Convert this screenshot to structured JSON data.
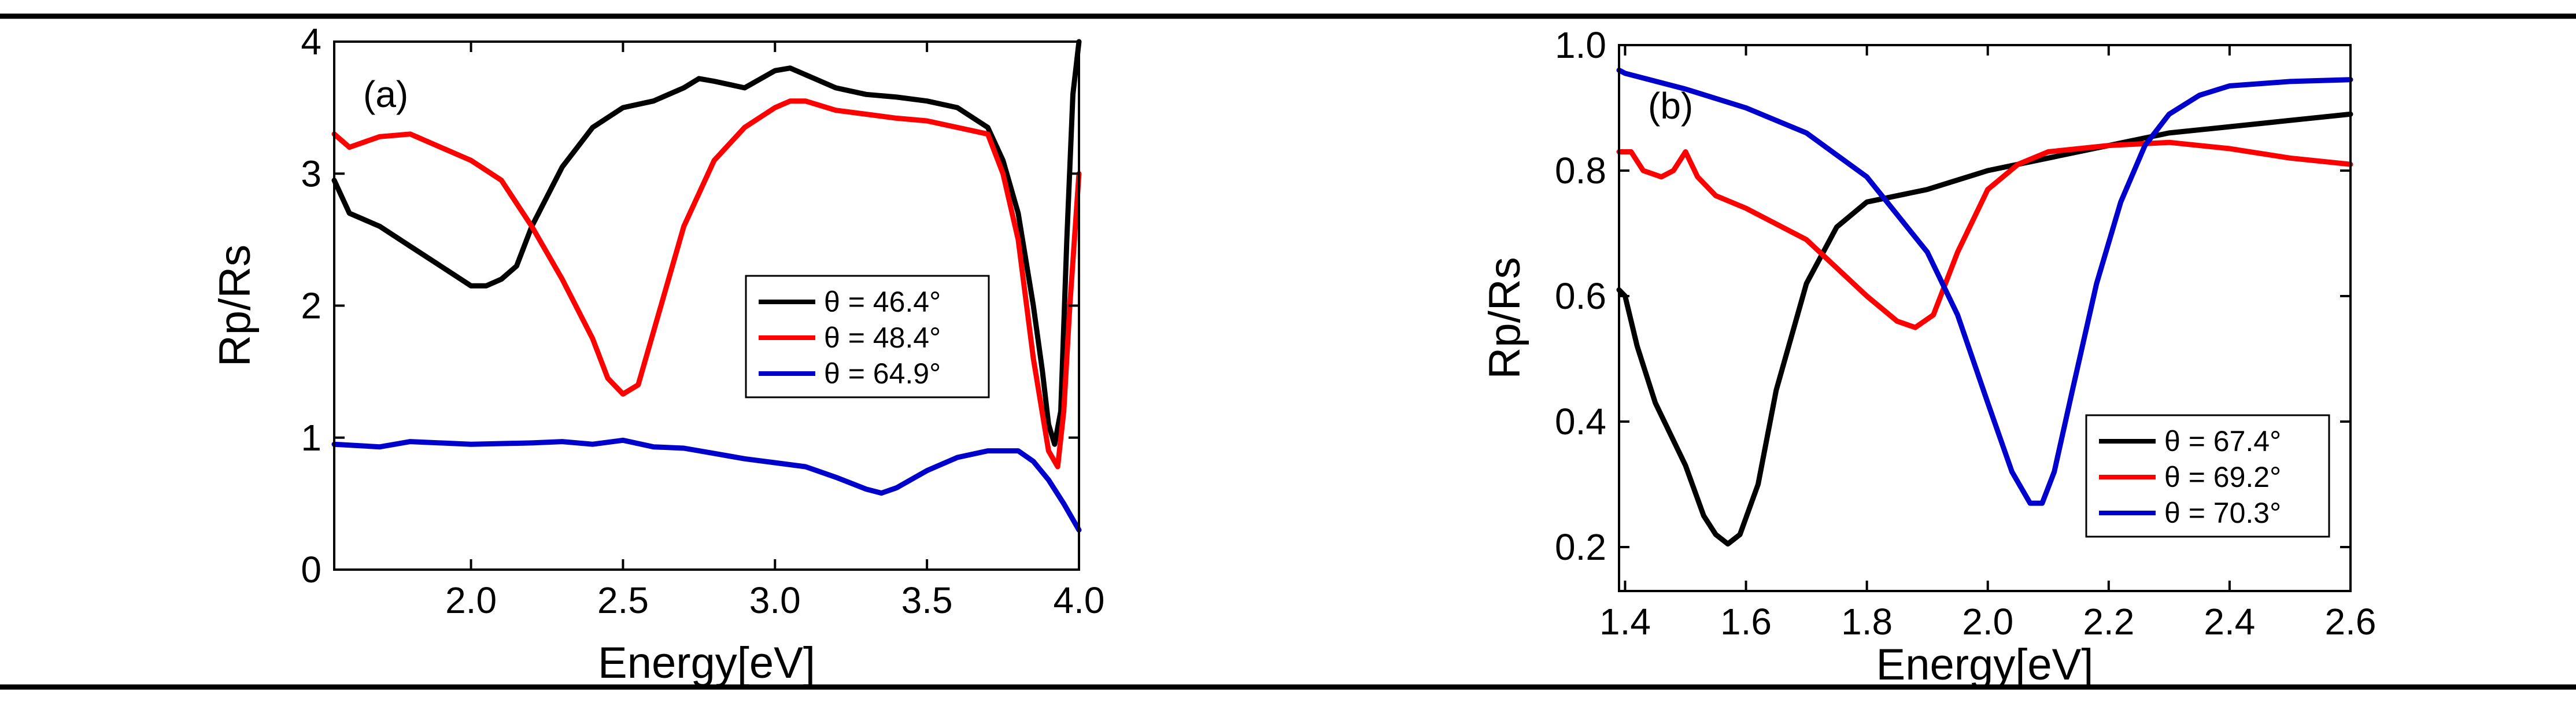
{
  "chart_data": [
    {
      "panel": "(a)",
      "type": "line",
      "title": "",
      "xlabel": "Energy[eV]",
      "ylabel": "Rp/Rs",
      "xlim": [
        1.55,
        4.0
      ],
      "ylim": [
        0,
        4
      ],
      "xticks": [
        "2.0",
        "2.5",
        "3.0",
        "3.5",
        "4.0"
      ],
      "yticks": [
        "0",
        "1",
        "2",
        "3",
        "4"
      ],
      "legend_position": "right-middle",
      "series": [
        {
          "name": "θ = 46.4°",
          "color": "#000000",
          "x": [
            1.55,
            1.6,
            1.7,
            1.8,
            1.9,
            2.0,
            2.05,
            2.1,
            2.15,
            2.2,
            2.3,
            2.4,
            2.5,
            2.6,
            2.7,
            2.75,
            2.8,
            2.9,
            3.0,
            3.05,
            3.1,
            3.2,
            3.3,
            3.4,
            3.5,
            3.6,
            3.7,
            3.75,
            3.8,
            3.85,
            3.88,
            3.9,
            3.92,
            3.94,
            3.96,
            3.98,
            4.0
          ],
          "y": [
            2.95,
            2.7,
            2.6,
            2.45,
            2.3,
            2.15,
            2.15,
            2.2,
            2.3,
            2.6,
            3.05,
            3.35,
            3.5,
            3.55,
            3.65,
            3.72,
            3.7,
            3.65,
            3.78,
            3.8,
            3.75,
            3.65,
            3.6,
            3.58,
            3.55,
            3.5,
            3.35,
            3.1,
            2.7,
            2.0,
            1.5,
            1.1,
            0.95,
            1.2,
            2.5,
            3.6,
            4.0
          ]
        },
        {
          "name": "θ = 48.4°",
          "color": "#ff0000",
          "x": [
            1.55,
            1.6,
            1.7,
            1.8,
            1.9,
            2.0,
            2.1,
            2.2,
            2.3,
            2.4,
            2.45,
            2.5,
            2.55,
            2.6,
            2.7,
            2.8,
            2.9,
            3.0,
            3.05,
            3.1,
            3.2,
            3.3,
            3.4,
            3.5,
            3.6,
            3.7,
            3.75,
            3.8,
            3.85,
            3.9,
            3.93,
            3.95,
            3.97,
            4.0
          ],
          "y": [
            3.3,
            3.2,
            3.28,
            3.3,
            3.2,
            3.1,
            2.95,
            2.6,
            2.2,
            1.75,
            1.45,
            1.33,
            1.4,
            1.8,
            2.6,
            3.1,
            3.35,
            3.5,
            3.55,
            3.55,
            3.48,
            3.45,
            3.42,
            3.4,
            3.35,
            3.3,
            3.0,
            2.5,
            1.6,
            0.9,
            0.78,
            1.2,
            2.0,
            3.0
          ]
        },
        {
          "name": "θ = 64.9°",
          "color": "#0000cc",
          "x": [
            1.55,
            1.7,
            1.8,
            2.0,
            2.2,
            2.3,
            2.4,
            2.5,
            2.6,
            2.7,
            2.8,
            2.9,
            3.0,
            3.1,
            3.2,
            3.3,
            3.35,
            3.4,
            3.5,
            3.6,
            3.7,
            3.8,
            3.85,
            3.9,
            3.95,
            4.0
          ],
          "y": [
            0.95,
            0.93,
            0.97,
            0.95,
            0.96,
            0.97,
            0.95,
            0.98,
            0.93,
            0.92,
            0.88,
            0.84,
            0.81,
            0.78,
            0.7,
            0.61,
            0.58,
            0.62,
            0.75,
            0.85,
            0.9,
            0.9,
            0.82,
            0.68,
            0.5,
            0.3
          ]
        }
      ]
    },
    {
      "panel": "(b)",
      "type": "line",
      "title": "",
      "xlabel": "Energy[eV]",
      "ylabel": "Rp/Rs",
      "xlim": [
        1.39,
        2.6
      ],
      "ylim": [
        0.13,
        1.0
      ],
      "xticks": [
        "1.4",
        "1.6",
        "1.8",
        "2.0",
        "2.2",
        "2.4",
        "2.6"
      ],
      "yticks": [
        "0.2",
        "0.4",
        "0.6",
        "0.8",
        "1.0"
      ],
      "legend_position": "bottom-right",
      "series": [
        {
          "name": "θ = 67.4°",
          "color": "#000000",
          "x": [
            1.39,
            1.4,
            1.42,
            1.45,
            1.5,
            1.53,
            1.55,
            1.57,
            1.59,
            1.62,
            1.65,
            1.7,
            1.75,
            1.8,
            1.9,
            2.0,
            2.1,
            2.2,
            2.3,
            2.4,
            2.5,
            2.6
          ],
          "y": [
            0.61,
            0.6,
            0.52,
            0.43,
            0.33,
            0.25,
            0.22,
            0.205,
            0.22,
            0.3,
            0.45,
            0.62,
            0.71,
            0.75,
            0.77,
            0.8,
            0.82,
            0.84,
            0.86,
            0.87,
            0.88,
            0.89
          ]
        },
        {
          "name": "θ = 69.2°",
          "color": "#ff0000",
          "x": [
            1.39,
            1.41,
            1.43,
            1.46,
            1.48,
            1.5,
            1.52,
            1.55,
            1.6,
            1.7,
            1.8,
            1.85,
            1.88,
            1.91,
            1.95,
            2.0,
            2.05,
            2.1,
            2.2,
            2.3,
            2.4,
            2.5,
            2.6
          ],
          "y": [
            0.83,
            0.83,
            0.8,
            0.79,
            0.8,
            0.83,
            0.79,
            0.76,
            0.74,
            0.69,
            0.6,
            0.56,
            0.55,
            0.57,
            0.67,
            0.77,
            0.81,
            0.83,
            0.84,
            0.845,
            0.835,
            0.82,
            0.81
          ]
        },
        {
          "name": "θ = 70.3°",
          "color": "#0000cc",
          "x": [
            1.39,
            1.4,
            1.5,
            1.6,
            1.7,
            1.8,
            1.9,
            1.95,
            2.0,
            2.04,
            2.07,
            2.09,
            2.11,
            2.14,
            2.18,
            2.22,
            2.26,
            2.3,
            2.35,
            2.4,
            2.5,
            2.6
          ],
          "y": [
            0.96,
            0.955,
            0.93,
            0.9,
            0.86,
            0.79,
            0.67,
            0.57,
            0.43,
            0.32,
            0.27,
            0.27,
            0.32,
            0.45,
            0.62,
            0.75,
            0.84,
            0.89,
            0.92,
            0.935,
            0.942,
            0.945
          ]
        }
      ]
    }
  ]
}
